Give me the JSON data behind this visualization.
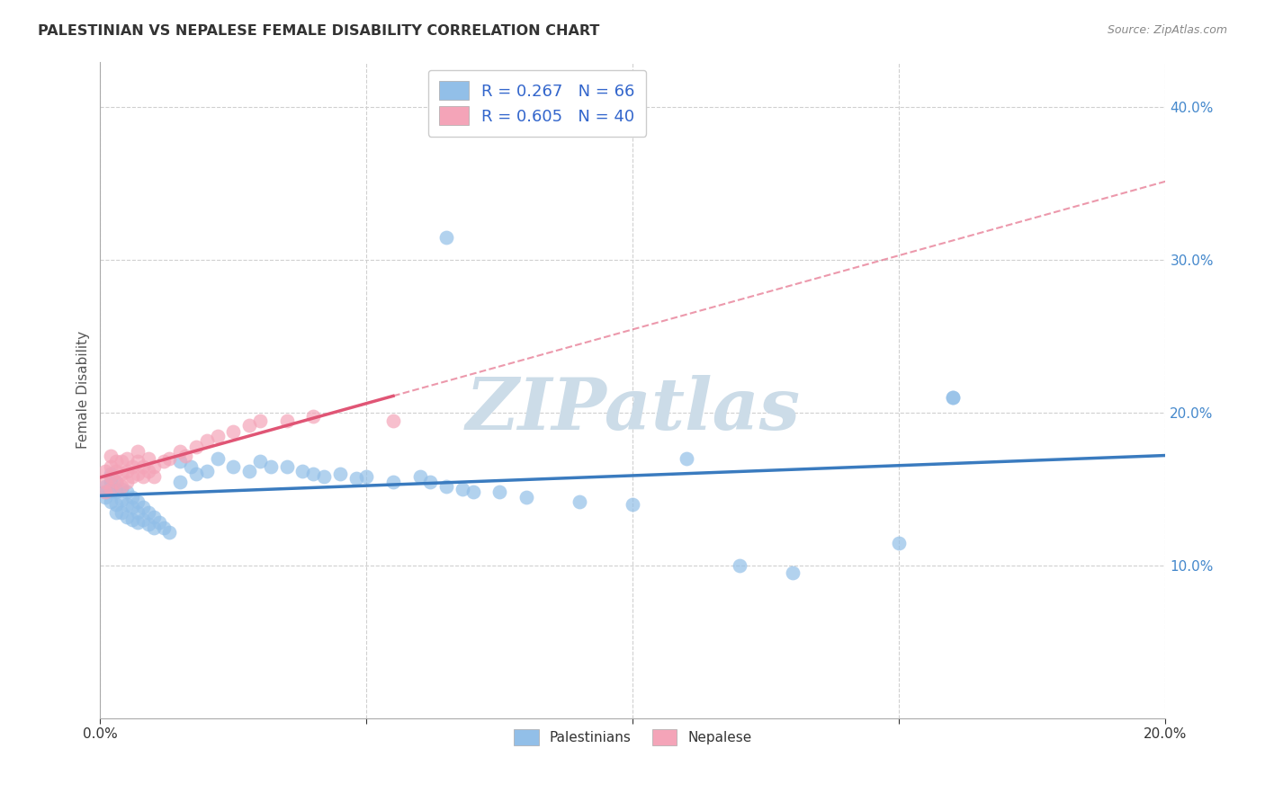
{
  "title": "PALESTINIAN VS NEPALESE FEMALE DISABILITY CORRELATION CHART",
  "source": "Source: ZipAtlas.com",
  "ylabel": "Female Disability",
  "xlim": [
    0.0,
    0.2
  ],
  "ylim": [
    0.0,
    0.43
  ],
  "palestinian_R": 0.267,
  "palestinian_N": 66,
  "nepalese_R": 0.605,
  "nepalese_N": 40,
  "blue_scatter_color": "#92bfe8",
  "pink_scatter_color": "#f4a4b8",
  "blue_line_color": "#3a7bbf",
  "pink_line_color": "#e05575",
  "watermark_color": "#ccdce8",
  "background_color": "#ffffff",
  "grid_color": "#d0d0d0",
  "title_color": "#333333",
  "source_color": "#888888",
  "tick_label_color": "#4488cc",
  "ylabel_color": "#555555",
  "legend_text_color": "#3366cc",
  "palestinian_x": [
    0.001,
    0.001,
    0.001,
    0.002,
    0.002,
    0.002,
    0.002,
    0.003,
    0.003,
    0.003,
    0.003,
    0.004,
    0.004,
    0.004,
    0.005,
    0.005,
    0.005,
    0.006,
    0.006,
    0.006,
    0.007,
    0.007,
    0.007,
    0.008,
    0.008,
    0.009,
    0.009,
    0.01,
    0.01,
    0.011,
    0.012,
    0.013,
    0.015,
    0.015,
    0.017,
    0.018,
    0.02,
    0.022,
    0.025,
    0.028,
    0.03,
    0.032,
    0.035,
    0.038,
    0.04,
    0.042,
    0.045,
    0.048,
    0.05,
    0.055,
    0.06,
    0.062,
    0.065,
    0.068,
    0.07,
    0.075,
    0.08,
    0.09,
    0.1,
    0.11,
    0.12,
    0.13,
    0.15,
    0.16,
    0.065,
    0.16
  ],
  "palestinian_y": [
    0.148,
    0.152,
    0.145,
    0.16,
    0.155,
    0.148,
    0.142,
    0.155,
    0.148,
    0.14,
    0.135,
    0.15,
    0.143,
    0.135,
    0.148,
    0.14,
    0.132,
    0.145,
    0.138,
    0.13,
    0.142,
    0.135,
    0.128,
    0.138,
    0.13,
    0.135,
    0.127,
    0.132,
    0.125,
    0.128,
    0.125,
    0.122,
    0.168,
    0.155,
    0.165,
    0.16,
    0.162,
    0.17,
    0.165,
    0.162,
    0.168,
    0.165,
    0.165,
    0.162,
    0.16,
    0.158,
    0.16,
    0.157,
    0.158,
    0.155,
    0.158,
    0.155,
    0.152,
    0.15,
    0.148,
    0.148,
    0.145,
    0.142,
    0.14,
    0.17,
    0.1,
    0.095,
    0.115,
    0.21,
    0.315,
    0.21
  ],
  "nepalese_x": [
    0.001,
    0.001,
    0.001,
    0.002,
    0.002,
    0.002,
    0.002,
    0.003,
    0.003,
    0.003,
    0.004,
    0.004,
    0.004,
    0.005,
    0.005,
    0.005,
    0.006,
    0.006,
    0.007,
    0.007,
    0.007,
    0.008,
    0.008,
    0.009,
    0.009,
    0.01,
    0.01,
    0.012,
    0.013,
    0.015,
    0.016,
    0.018,
    0.02,
    0.022,
    0.025,
    0.028,
    0.03,
    0.035,
    0.04,
    0.055
  ],
  "nepalese_y": [
    0.148,
    0.155,
    0.162,
    0.158,
    0.15,
    0.165,
    0.172,
    0.162,
    0.155,
    0.168,
    0.16,
    0.152,
    0.168,
    0.162,
    0.155,
    0.17,
    0.165,
    0.158,
    0.168,
    0.16,
    0.175,
    0.165,
    0.158,
    0.17,
    0.162,
    0.165,
    0.158,
    0.168,
    0.17,
    0.175,
    0.172,
    0.178,
    0.182,
    0.185,
    0.188,
    0.192,
    0.195,
    0.195,
    0.198,
    0.195
  ]
}
